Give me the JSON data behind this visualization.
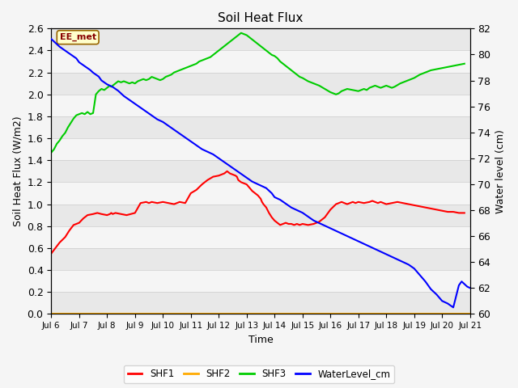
{
  "title": "Soil Heat Flux",
  "xlabel": "Time",
  "ylabel_left": "Soil Heat Flux (W/m2)",
  "ylabel_right": "Water level (cm)",
  "ylim_left": [
    0.0,
    2.6
  ],
  "ylim_right": [
    60,
    82
  ],
  "xlim": [
    0,
    15
  ],
  "xtick_labels": [
    "Jul 6",
    "Jul 7",
    "Jul 8",
    "Jul 9",
    "Jul 10",
    "Jul 11",
    "Jul 12",
    "Jul 13",
    "Jul 14",
    "Jul 15",
    "Jul 16",
    "Jul 17",
    "Jul 18",
    "Jul 19",
    "Jul 20",
    "Jul 21"
  ],
  "label_box": "EE_met",
  "bg_color": "#f5f5f5",
  "stripe_colors": [
    "#e8e8e8",
    "#f5f5f5"
  ],
  "shf1_x": [
    0,
    0.15,
    0.3,
    0.5,
    0.65,
    0.8,
    1.0,
    1.15,
    1.3,
    1.5,
    1.65,
    1.8,
    2.0,
    2.1,
    2.15,
    2.2,
    2.3,
    2.5,
    2.7,
    2.85,
    3.0,
    3.2,
    3.4,
    3.5,
    3.6,
    3.8,
    4.0,
    4.2,
    4.4,
    4.5,
    4.6,
    4.8,
    5.0,
    5.2,
    5.4,
    5.6,
    5.8,
    6.0,
    6.1,
    6.2,
    6.3,
    6.4,
    6.5,
    6.6,
    6.65,
    6.7,
    6.8,
    7.0,
    7.1,
    7.2,
    7.3,
    7.4,
    7.5,
    7.55,
    7.6,
    7.7,
    7.8,
    7.9,
    8.0,
    8.1,
    8.2,
    8.3,
    8.4,
    8.5,
    8.6,
    8.7,
    8.8,
    8.9,
    9.0,
    9.2,
    9.4,
    9.5,
    9.6,
    9.8,
    10.0,
    10.2,
    10.3,
    10.4,
    10.5,
    10.6,
    10.7,
    10.8,
    10.9,
    11.0,
    11.2,
    11.4,
    11.5,
    11.6,
    11.7,
    11.8,
    11.9,
    12.0,
    12.2,
    12.4,
    12.6,
    12.8,
    13.0,
    13.2,
    13.4,
    13.6,
    13.8,
    14.0,
    14.2,
    14.4,
    14.6,
    14.8
  ],
  "shf1_y": [
    0.55,
    0.6,
    0.65,
    0.7,
    0.76,
    0.81,
    0.83,
    0.87,
    0.9,
    0.91,
    0.92,
    0.91,
    0.9,
    0.91,
    0.92,
    0.91,
    0.92,
    0.91,
    0.9,
    0.91,
    0.92,
    1.01,
    1.02,
    1.01,
    1.02,
    1.01,
    1.02,
    1.01,
    1.0,
    1.01,
    1.02,
    1.01,
    1.1,
    1.13,
    1.18,
    1.22,
    1.25,
    1.26,
    1.27,
    1.28,
    1.3,
    1.28,
    1.27,
    1.26,
    1.25,
    1.22,
    1.2,
    1.18,
    1.15,
    1.12,
    1.1,
    1.08,
    1.05,
    1.02,
    1.0,
    0.97,
    0.92,
    0.88,
    0.85,
    0.83,
    0.81,
    0.82,
    0.83,
    0.82,
    0.82,
    0.81,
    0.82,
    0.81,
    0.82,
    0.81,
    0.82,
    0.83,
    0.84,
    0.88,
    0.95,
    1.0,
    1.01,
    1.02,
    1.01,
    1.0,
    1.01,
    1.02,
    1.01,
    1.02,
    1.01,
    1.02,
    1.03,
    1.02,
    1.01,
    1.02,
    1.01,
    1.0,
    1.01,
    1.02,
    1.01,
    1.0,
    0.99,
    0.98,
    0.97,
    0.96,
    0.95,
    0.94,
    0.93,
    0.93,
    0.92,
    0.92
  ],
  "shf3_x": [
    0,
    0.1,
    0.2,
    0.3,
    0.4,
    0.5,
    0.6,
    0.7,
    0.8,
    0.9,
    1.0,
    1.1,
    1.2,
    1.25,
    1.3,
    1.4,
    1.5,
    1.6,
    1.7,
    1.8,
    1.9,
    2.0,
    2.1,
    2.15,
    2.2,
    2.3,
    2.4,
    2.5,
    2.6,
    2.7,
    2.8,
    2.9,
    3.0,
    3.1,
    3.2,
    3.3,
    3.4,
    3.5,
    3.6,
    3.7,
    3.8,
    3.9,
    4.0,
    4.1,
    4.2,
    4.3,
    4.4,
    4.5,
    4.6,
    4.7,
    4.8,
    4.9,
    5.0,
    5.1,
    5.2,
    5.3,
    5.4,
    5.5,
    5.6,
    5.7,
    5.8,
    5.9,
    6.0,
    6.1,
    6.2,
    6.3,
    6.4,
    6.5,
    6.6,
    6.7,
    6.8,
    6.9,
    7.0,
    7.1,
    7.2,
    7.3,
    7.4,
    7.5,
    7.6,
    7.7,
    7.8,
    7.9,
    8.0,
    8.1,
    8.2,
    8.3,
    8.4,
    8.5,
    8.6,
    8.7,
    8.8,
    8.9,
    9.0,
    9.2,
    9.4,
    9.6,
    9.8,
    10.0,
    10.2,
    10.3,
    10.4,
    10.5,
    10.6,
    10.8,
    11.0,
    11.1,
    11.2,
    11.3,
    11.4,
    11.5,
    11.6,
    11.7,
    11.8,
    11.9,
    12.0,
    12.1,
    12.2,
    12.3,
    12.5,
    12.6,
    12.7,
    12.8,
    12.9,
    13.0,
    13.2,
    13.4,
    13.6,
    13.8,
    14.0,
    14.2,
    14.4,
    14.6,
    14.8
  ],
  "shf3_y": [
    1.47,
    1.5,
    1.55,
    1.58,
    1.62,
    1.65,
    1.7,
    1.74,
    1.78,
    1.81,
    1.82,
    1.83,
    1.82,
    1.83,
    1.84,
    1.82,
    1.83,
    2.0,
    2.03,
    2.05,
    2.04,
    2.06,
    2.08,
    2.07,
    2.08,
    2.1,
    2.12,
    2.11,
    2.12,
    2.11,
    2.1,
    2.11,
    2.1,
    2.12,
    2.13,
    2.14,
    2.13,
    2.14,
    2.16,
    2.15,
    2.14,
    2.13,
    2.14,
    2.16,
    2.17,
    2.18,
    2.2,
    2.21,
    2.22,
    2.23,
    2.24,
    2.25,
    2.26,
    2.27,
    2.28,
    2.3,
    2.31,
    2.32,
    2.33,
    2.34,
    2.36,
    2.38,
    2.4,
    2.42,
    2.44,
    2.46,
    2.48,
    2.5,
    2.52,
    2.54,
    2.56,
    2.55,
    2.54,
    2.52,
    2.5,
    2.48,
    2.46,
    2.44,
    2.42,
    2.4,
    2.38,
    2.36,
    2.35,
    2.33,
    2.3,
    2.28,
    2.26,
    2.24,
    2.22,
    2.2,
    2.18,
    2.16,
    2.15,
    2.12,
    2.1,
    2.08,
    2.05,
    2.02,
    2.0,
    2.01,
    2.03,
    2.04,
    2.05,
    2.04,
    2.03,
    2.04,
    2.05,
    2.04,
    2.06,
    2.07,
    2.08,
    2.07,
    2.06,
    2.07,
    2.08,
    2.07,
    2.06,
    2.07,
    2.1,
    2.11,
    2.12,
    2.13,
    2.14,
    2.15,
    2.18,
    2.2,
    2.22,
    2.23,
    2.24,
    2.25,
    2.26,
    2.27,
    2.28
  ],
  "wl_x": [
    0,
    0.1,
    0.2,
    0.3,
    0.5,
    0.7,
    0.9,
    1.0,
    1.2,
    1.4,
    1.5,
    1.7,
    1.8,
    2.0,
    2.2,
    2.4,
    2.5,
    2.6,
    2.8,
    3.0,
    3.2,
    3.4,
    3.6,
    3.8,
    4.0,
    4.2,
    4.4,
    4.6,
    4.8,
    5.0,
    5.2,
    5.4,
    5.6,
    5.8,
    6.0,
    6.2,
    6.4,
    6.6,
    6.8,
    7.0,
    7.2,
    7.4,
    7.5,
    7.6,
    7.7,
    7.8,
    7.9,
    8.0,
    8.2,
    8.4,
    8.6,
    8.8,
    9.0,
    9.2,
    9.4,
    9.6,
    9.8,
    10.0,
    10.2,
    10.4,
    10.6,
    10.8,
    11.0,
    11.2,
    11.4,
    11.6,
    11.8,
    12.0,
    12.2,
    12.4,
    12.6,
    12.8,
    13.0,
    13.2,
    13.4,
    13.5,
    13.6,
    13.8,
    14.0,
    14.2,
    14.4,
    14.6,
    14.7,
    14.8,
    14.9,
    15.0
  ],
  "wl_y": [
    81.2,
    81.0,
    80.8,
    80.6,
    80.3,
    80.0,
    79.7,
    79.4,
    79.1,
    78.8,
    78.6,
    78.3,
    78.0,
    77.7,
    77.5,
    77.2,
    77.0,
    76.8,
    76.5,
    76.2,
    75.9,
    75.6,
    75.3,
    75.0,
    74.8,
    74.5,
    74.2,
    73.9,
    73.6,
    73.3,
    73.0,
    72.7,
    72.5,
    72.3,
    72.0,
    71.7,
    71.4,
    71.1,
    70.8,
    70.5,
    70.2,
    70.0,
    69.9,
    69.8,
    69.7,
    69.5,
    69.3,
    69.0,
    68.8,
    68.5,
    68.2,
    68.0,
    67.8,
    67.5,
    67.2,
    67.0,
    66.8,
    66.6,
    66.4,
    66.2,
    66.0,
    65.8,
    65.6,
    65.4,
    65.2,
    65.0,
    64.8,
    64.6,
    64.4,
    64.2,
    64.0,
    63.8,
    63.5,
    63.0,
    62.5,
    62.2,
    61.9,
    61.5,
    61.0,
    60.8,
    60.5,
    62.2,
    62.5,
    62.3,
    62.1,
    62.0
  ]
}
